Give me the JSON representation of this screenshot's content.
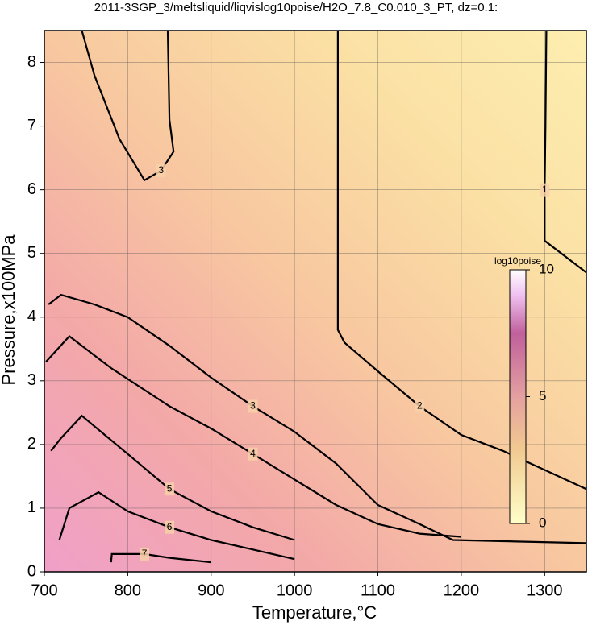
{
  "chart_data": {
    "type": "contour",
    "title": "2011-3SGP_3/meltsliquid/liqvislog10poise/H2O_7.8_C0.010_3_PT, dz=0.1:",
    "x_label": "Temperature,°C",
    "y_label": "Pressure,x100MPa",
    "xlim": [
      700,
      1350
    ],
    "ylim": [
      0,
      8.5
    ],
    "xticks": [
      700,
      800,
      900,
      1000,
      1100,
      1200,
      1300
    ],
    "yticks": [
      0,
      1,
      2,
      3,
      4,
      5,
      6,
      7,
      8
    ],
    "grid": true,
    "colorbar": {
      "label": "log10poise",
      "lim": [
        0,
        10
      ],
      "ticks": [
        0,
        5,
        10
      ]
    },
    "contours": [
      {
        "level": 1,
        "x": [
          1302,
          1301,
          1300,
          1300,
          1350
        ],
        "y": [
          8.5,
          7.0,
          6.0,
          5.2,
          4.7
        ]
      },
      {
        "level": 2,
        "x": [
          1052,
          1052,
          1052,
          1060,
          1100,
          1150,
          1200,
          1250,
          1300,
          1350
        ],
        "y": [
          8.5,
          6.0,
          3.8,
          3.6,
          3.15,
          2.6,
          2.15,
          1.9,
          1.6,
          1.3
        ]
      },
      {
        "level": 3,
        "x": [
          745,
          760,
          790,
          820,
          840,
          855,
          850,
          848
        ],
        "y": [
          8.5,
          7.8,
          6.8,
          6.15,
          6.3,
          6.6,
          7.1,
          8.5
        ]
      },
      {
        "level": 3,
        "x": [
          705,
          720,
          760,
          800,
          850,
          900,
          950,
          1000,
          1050,
          1100,
          1150,
          1190,
          1350
        ],
        "y": [
          4.2,
          4.35,
          4.2,
          4.0,
          3.55,
          3.05,
          2.6,
          2.2,
          1.7,
          1.05,
          0.75,
          0.5,
          0.45
        ]
      },
      {
        "level": 4,
        "x": [
          702,
          730,
          780,
          850,
          900,
          950,
          1000,
          1050,
          1100,
          1150,
          1200
        ],
        "y": [
          3.3,
          3.7,
          3.2,
          2.6,
          2.25,
          1.85,
          1.45,
          1.05,
          0.75,
          0.6,
          0.55
        ]
      },
      {
        "level": 5,
        "x": [
          708,
          720,
          745,
          800,
          850,
          900,
          950,
          1000
        ],
        "y": [
          1.9,
          2.1,
          2.45,
          1.85,
          1.3,
          0.95,
          0.7,
          0.5
        ]
      },
      {
        "level": 6,
        "x": [
          718,
          730,
          765,
          800,
          850,
          900,
          950,
          1000
        ],
        "y": [
          0.5,
          1.0,
          1.25,
          0.95,
          0.7,
          0.5,
          0.35,
          0.2
        ]
      },
      {
        "level": 7,
        "x": [
          780,
          781,
          820,
          850,
          900
        ],
        "y": [
          0.15,
          0.28,
          0.28,
          0.22,
          0.15
        ]
      }
    ]
  }
}
